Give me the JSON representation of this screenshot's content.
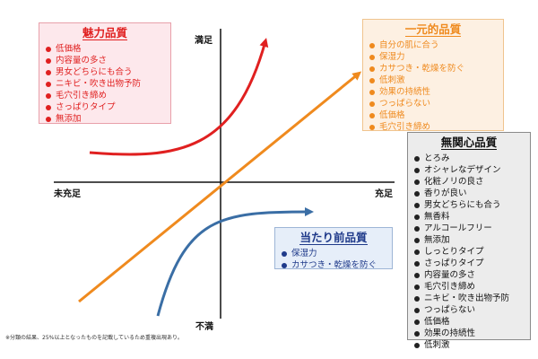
{
  "axis_labels": {
    "top": "満足",
    "bottom": "不満",
    "left": "未充足",
    "right": "充足"
  },
  "boxes": {
    "miryoku": {
      "title": "魅力品質",
      "items": [
        "低価格",
        "内容量の多さ",
        "男女どちらにも合う",
        "ニキビ・吹き出物予防",
        "毛穴引き締め",
        "さっぱりタイプ",
        "無添加"
      ]
    },
    "ichigen": {
      "title": "一元的品質",
      "items": [
        "自分の肌に合う",
        "保湿力",
        "カサつき・乾燥を防ぐ",
        "低刺激",
        "効果の持続性",
        "つっぱらない",
        "低価格",
        "毛穴引き締め"
      ]
    },
    "mukanshin": {
      "title": "無関心品質",
      "items": [
        "とろみ",
        "オシャレなデザイン",
        "化粧ノリの良さ",
        "香りが良い",
        "男女どちらにも合う",
        "無香料",
        "アルコールフリー",
        "無添加",
        "しっとりタイプ",
        "さっぱりタイプ",
        "内容量の多さ",
        "毛穴引き締め",
        "ニキビ・吹き出物予防",
        "つっぱらない",
        "低価格",
        "効果の持続性",
        "低刺激"
      ]
    },
    "atarimae": {
      "title": "当たり前品質",
      "items": [
        "保湿力",
        "カサつき・乾燥を防ぐ"
      ]
    }
  },
  "footnote": "※分類の結果、25%以上となったものを記載しているため重複出現あり。",
  "colors": {
    "miryoku": "#e02020",
    "ichigen": "#ef8a1e",
    "atarimae": "#3a6ea5",
    "axis": "#111111"
  }
}
